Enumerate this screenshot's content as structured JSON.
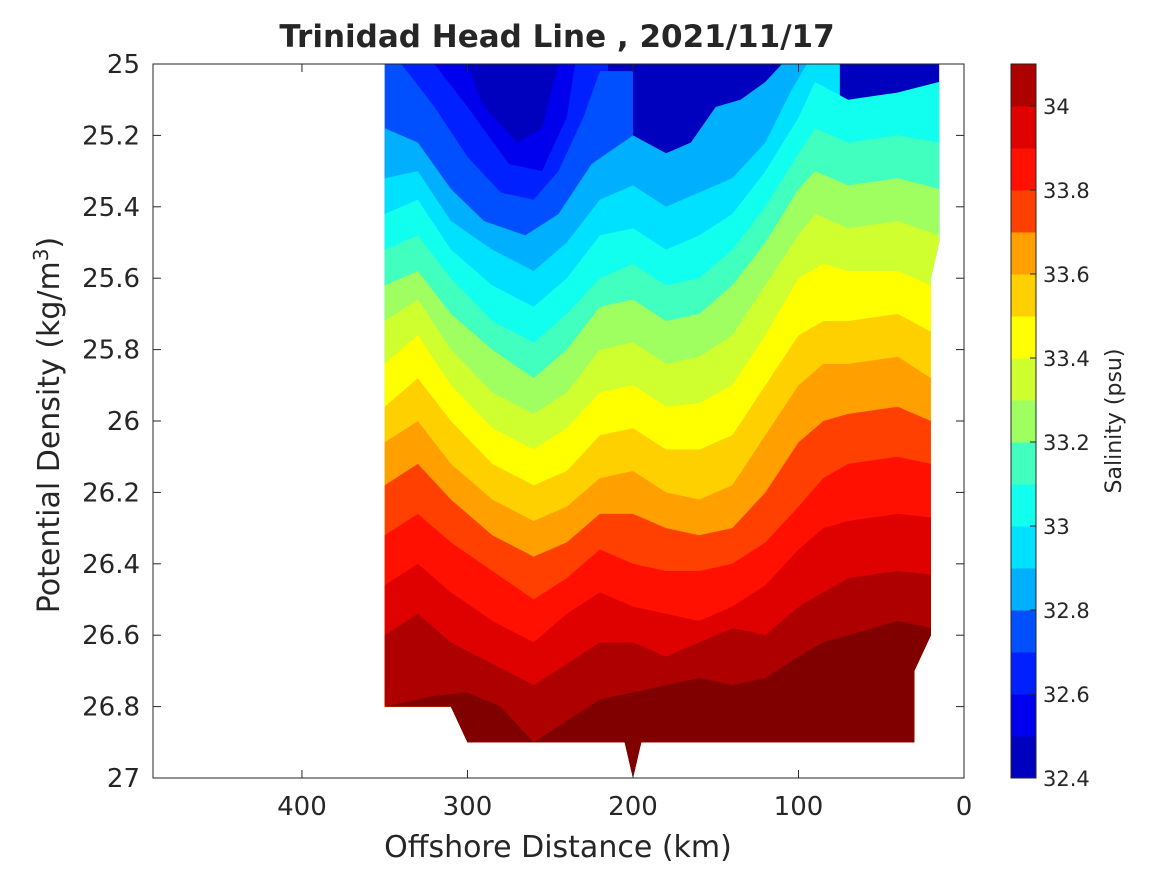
{
  "chart_data": {
    "type": "heatmap",
    "subtype": "filled-contour",
    "title": "Trinidad Head Line , 2021/11/17",
    "xlabel": "Offshore Distance (km)",
    "ylabel_prefix": "Potential Density (kg/m",
    "ylabel_sup": "3",
    "ylabel_suffix": ")",
    "colorbar_label": "Salinity (psu)",
    "colormap": "jet",
    "x_reversed": true,
    "y_reversed": true,
    "xlim": [
      0,
      490
    ],
    "ylim": [
      25,
      27
    ],
    "x_ticks": [
      400,
      300,
      200,
      100,
      0
    ],
    "y_ticks": [
      25,
      25.2,
      25.4,
      25.6,
      25.8,
      26,
      26.2,
      26.4,
      26.6,
      26.8,
      27
    ],
    "y_tick_labels": [
      "25",
      "25.2",
      "25.4",
      "25.6",
      "25.8",
      "26",
      "26.2",
      "26.4",
      "26.6",
      "26.8",
      "27"
    ],
    "colorbar_range": [
      32.4,
      34.1
    ],
    "colorbar_ticks": [
      32.4,
      32.6,
      32.8,
      33,
      33.2,
      33.4,
      33.6,
      33.8,
      34
    ],
    "colorbar_tick_labels": [
      "32.4",
      "32.6",
      "32.8",
      "33",
      "33.2",
      "33.4",
      "33.6",
      "33.8",
      "34"
    ],
    "levels": [
      32.4,
      32.5,
      32.6,
      32.7,
      32.8,
      32.9,
      33.0,
      33.1,
      33.2,
      33.3,
      33.4,
      33.5,
      33.6,
      33.7,
      33.8,
      33.9,
      34.0,
      34.1
    ],
    "level_colors": [
      "#00008f",
      "#0000bf",
      "#0000ef",
      "#0020ff",
      "#0050ff",
      "#0080ff",
      "#00b0ff",
      "#00e0ff",
      "#10ffef",
      "#40ffbf",
      "#70ff8f",
      "#a0ff60",
      "#d0ff30",
      "#ffff00",
      "#ffd000",
      "#ffa000",
      "#ff7000",
      "#ff4000",
      "#ff1000",
      "#df0000",
      "#af0000",
      "#800000"
    ],
    "x_km": [
      350,
      330,
      310,
      290,
      270,
      250,
      230,
      210,
      190,
      170,
      150,
      130,
      110,
      90,
      70,
      50,
      30,
      15
    ],
    "salinity_isolines": {
      "32.5": [
        [
          300,
          25.0
        ],
        [
          290,
          25.12
        ],
        [
          270,
          25.22
        ],
        [
          255,
          25.18
        ],
        [
          245,
          25.0
        ]
      ],
      "32.6": [
        [
          320,
          25.0
        ],
        [
          300,
          25.12
        ],
        [
          275,
          25.28
        ],
        [
          255,
          25.3
        ],
        [
          240,
          25.15
        ],
        [
          235,
          25.0
        ]
      ],
      "32.7": [
        [
          340,
          25.0
        ],
        [
          320,
          25.12
        ],
        [
          300,
          25.26
        ],
        [
          280,
          25.36
        ],
        [
          260,
          25.38
        ],
        [
          245,
          25.3
        ],
        [
          230,
          25.15
        ],
        [
          220,
          25.02
        ]
      ],
      "32.8": [
        [
          350,
          25.18
        ],
        [
          330,
          25.22
        ],
        [
          310,
          25.35
        ],
        [
          290,
          25.44
        ],
        [
          265,
          25.48
        ],
        [
          245,
          25.42
        ],
        [
          225,
          25.28
        ],
        [
          200,
          25.2
        ],
        [
          180,
          25.25
        ],
        [
          165,
          25.22
        ],
        [
          150,
          25.12
        ],
        [
          135,
          25.1
        ],
        [
          120,
          25.05
        ],
        [
          110,
          25.0
        ]
      ],
      "32.9": [
        [
          350,
          25.32
        ],
        [
          330,
          25.3
        ],
        [
          310,
          25.44
        ],
        [
          285,
          25.52
        ],
        [
          260,
          25.58
        ],
        [
          240,
          25.5
        ],
        [
          220,
          25.38
        ],
        [
          200,
          25.34
        ],
        [
          180,
          25.4
        ],
        [
          160,
          25.36
        ],
        [
          140,
          25.32
        ],
        [
          120,
          25.22
        ],
        [
          105,
          25.08
        ],
        [
          95,
          25.0
        ]
      ],
      "33.0": [
        [
          350,
          25.42
        ],
        [
          330,
          25.38
        ],
        [
          310,
          25.52
        ],
        [
          285,
          25.62
        ],
        [
          260,
          25.68
        ],
        [
          240,
          25.6
        ],
        [
          220,
          25.48
        ],
        [
          200,
          25.46
        ],
        [
          180,
          25.52
        ],
        [
          160,
          25.48
        ],
        [
          140,
          25.42
        ],
        [
          120,
          25.3
        ],
        [
          100,
          25.15
        ],
        [
          90,
          25.05
        ],
        [
          70,
          25.1
        ],
        [
          40,
          25.08
        ],
        [
          15,
          25.05
        ]
      ],
      "33.1": [
        [
          350,
          25.52
        ],
        [
          330,
          25.48
        ],
        [
          310,
          25.6
        ],
        [
          285,
          25.72
        ],
        [
          260,
          25.78
        ],
        [
          240,
          25.7
        ],
        [
          220,
          25.6
        ],
        [
          200,
          25.56
        ],
        [
          180,
          25.62
        ],
        [
          160,
          25.6
        ],
        [
          140,
          25.52
        ],
        [
          120,
          25.4
        ],
        [
          100,
          25.25
        ],
        [
          90,
          25.18
        ],
        [
          70,
          25.22
        ],
        [
          40,
          25.2
        ],
        [
          15,
          25.22
        ]
      ],
      "33.2": [
        [
          350,
          25.62
        ],
        [
          330,
          25.58
        ],
        [
          310,
          25.7
        ],
        [
          285,
          25.8
        ],
        [
          260,
          25.88
        ],
        [
          240,
          25.8
        ],
        [
          220,
          25.68
        ],
        [
          200,
          25.66
        ],
        [
          180,
          25.72
        ],
        [
          160,
          25.7
        ],
        [
          140,
          25.62
        ],
        [
          120,
          25.5
        ],
        [
          100,
          25.35
        ],
        [
          90,
          25.3
        ],
        [
          70,
          25.34
        ],
        [
          40,
          25.32
        ],
        [
          15,
          25.35
        ]
      ],
      "33.3": [
        [
          350,
          25.72
        ],
        [
          330,
          25.66
        ],
        [
          310,
          25.8
        ],
        [
          285,
          25.92
        ],
        [
          260,
          25.98
        ],
        [
          240,
          25.92
        ],
        [
          220,
          25.8
        ],
        [
          200,
          25.78
        ],
        [
          180,
          25.84
        ],
        [
          160,
          25.82
        ],
        [
          140,
          25.76
        ],
        [
          120,
          25.62
        ],
        [
          100,
          25.48
        ],
        [
          90,
          25.42
        ],
        [
          70,
          25.46
        ],
        [
          40,
          25.44
        ],
        [
          15,
          25.48
        ]
      ],
      "33.4": [
        [
          350,
          25.84
        ],
        [
          330,
          25.76
        ],
        [
          310,
          25.9
        ],
        [
          285,
          26.02
        ],
        [
          260,
          26.08
        ],
        [
          240,
          26.02
        ],
        [
          220,
          25.92
        ],
        [
          200,
          25.9
        ],
        [
          180,
          25.96
        ],
        [
          160,
          25.95
        ],
        [
          140,
          25.9
        ],
        [
          120,
          25.76
        ],
        [
          100,
          25.6
        ],
        [
          85,
          25.56
        ],
        [
          70,
          25.58
        ],
        [
          40,
          25.58
        ],
        [
          20,
          25.62
        ]
      ],
      "33.5": [
        [
          350,
          25.96
        ],
        [
          330,
          25.88
        ],
        [
          310,
          26.0
        ],
        [
          285,
          26.12
        ],
        [
          260,
          26.18
        ],
        [
          240,
          26.14
        ],
        [
          220,
          26.04
        ],
        [
          200,
          26.02
        ],
        [
          180,
          26.08
        ],
        [
          160,
          26.08
        ],
        [
          140,
          26.04
        ],
        [
          120,
          25.9
        ],
        [
          100,
          25.76
        ],
        [
          85,
          25.72
        ],
        [
          70,
          25.72
        ],
        [
          40,
          25.7
        ],
        [
          20,
          25.75
        ]
      ],
      "33.6": [
        [
          350,
          26.06
        ],
        [
          330,
          26.0
        ],
        [
          310,
          26.12
        ],
        [
          285,
          26.22
        ],
        [
          260,
          26.28
        ],
        [
          240,
          26.24
        ],
        [
          220,
          26.16
        ],
        [
          200,
          26.14
        ],
        [
          180,
          26.2
        ],
        [
          160,
          26.22
        ],
        [
          140,
          26.18
        ],
        [
          120,
          26.04
        ],
        [
          100,
          25.9
        ],
        [
          85,
          25.84
        ],
        [
          70,
          25.84
        ],
        [
          40,
          25.82
        ],
        [
          20,
          25.88
        ]
      ],
      "33.7": [
        [
          350,
          26.18
        ],
        [
          330,
          26.12
        ],
        [
          310,
          26.22
        ],
        [
          285,
          26.32
        ],
        [
          260,
          26.38
        ],
        [
          240,
          26.34
        ],
        [
          220,
          26.26
        ],
        [
          200,
          26.26
        ],
        [
          180,
          26.3
        ],
        [
          160,
          26.32
        ],
        [
          140,
          26.3
        ],
        [
          120,
          26.2
        ],
        [
          100,
          26.06
        ],
        [
          85,
          26.0
        ],
        [
          70,
          25.98
        ],
        [
          40,
          25.96
        ],
        [
          20,
          26.0
        ]
      ],
      "33.8": [
        [
          350,
          26.32
        ],
        [
          330,
          26.26
        ],
        [
          310,
          26.34
        ],
        [
          285,
          26.42
        ],
        [
          260,
          26.5
        ],
        [
          240,
          26.44
        ],
        [
          220,
          26.36
        ],
        [
          200,
          26.4
        ],
        [
          180,
          26.42
        ],
        [
          160,
          26.42
        ],
        [
          140,
          26.4
        ],
        [
          120,
          26.34
        ],
        [
          100,
          26.24
        ],
        [
          85,
          26.16
        ],
        [
          70,
          26.12
        ],
        [
          40,
          26.1
        ],
        [
          20,
          26.12
        ]
      ],
      "33.9": [
        [
          350,
          26.46
        ],
        [
          330,
          26.4
        ],
        [
          310,
          26.48
        ],
        [
          285,
          26.56
        ],
        [
          260,
          26.62
        ],
        [
          240,
          26.54
        ],
        [
          220,
          26.48
        ],
        [
          200,
          26.52
        ],
        [
          180,
          26.54
        ],
        [
          160,
          26.56
        ],
        [
          140,
          26.52
        ],
        [
          120,
          26.46
        ],
        [
          100,
          26.36
        ],
        [
          85,
          26.3
        ],
        [
          70,
          26.28
        ],
        [
          40,
          26.26
        ],
        [
          20,
          26.27
        ]
      ],
      "34.0": [
        [
          350,
          26.6
        ],
        [
          330,
          26.54
        ],
        [
          310,
          26.62
        ],
        [
          285,
          26.68
        ],
        [
          260,
          26.74
        ],
        [
          240,
          26.68
        ],
        [
          220,
          26.62
        ],
        [
          200,
          26.62
        ],
        [
          180,
          26.66
        ],
        [
          160,
          26.62
        ],
        [
          140,
          26.58
        ],
        [
          120,
          26.6
        ],
        [
          100,
          26.52
        ],
        [
          85,
          26.48
        ],
        [
          70,
          26.44
        ],
        [
          40,
          26.42
        ],
        [
          20,
          26.43
        ]
      ],
      "34.1": [
        [
          350,
          26.8
        ],
        [
          320,
          26.77
        ],
        [
          300,
          26.76
        ],
        [
          280,
          26.8
        ],
        [
          260,
          26.9
        ],
        [
          240,
          26.84
        ],
        [
          220,
          26.78
        ],
        [
          200,
          26.76
        ],
        [
          180,
          26.74
        ],
        [
          160,
          26.72
        ],
        [
          140,
          26.74
        ],
        [
          120,
          26.72
        ],
        [
          100,
          26.66
        ],
        [
          85,
          26.62
        ],
        [
          70,
          26.6
        ],
        [
          40,
          26.56
        ],
        [
          20,
          26.58
        ]
      ]
    },
    "data_boundary": [
      [
        350,
        25.0
      ],
      [
        15,
        25.0
      ],
      [
        15,
        25.5
      ],
      [
        20,
        25.6
      ],
      [
        20,
        26.6
      ],
      [
        30,
        26.7
      ],
      [
        30,
        26.9
      ],
      [
        195,
        26.9
      ],
      [
        200,
        27.0
      ],
      [
        205,
        26.9
      ],
      [
        300,
        26.9
      ],
      [
        310,
        26.8
      ],
      [
        350,
        26.8
      ]
    ]
  }
}
